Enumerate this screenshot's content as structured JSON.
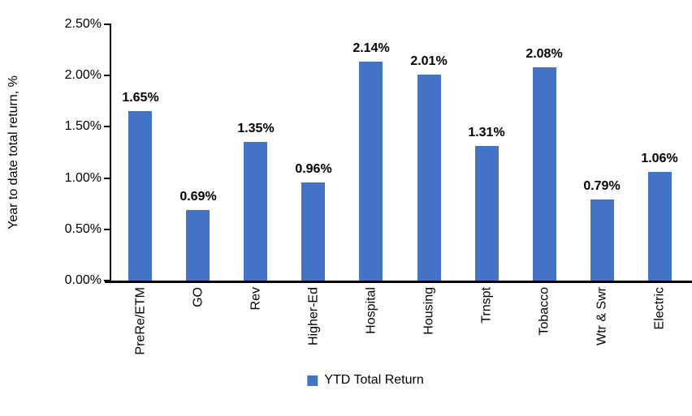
{
  "chart_data": {
    "type": "bar",
    "title": "",
    "categories": [
      "PreRe/ETM",
      "GO",
      "Rev",
      "Higher-Ed",
      "Hospital",
      "Housing",
      "Trnspt",
      "Tobacco",
      "Wtr & Swr",
      "Electric"
    ],
    "values": [
      1.65,
      0.69,
      1.35,
      0.96,
      2.14,
      2.01,
      1.31,
      2.08,
      0.79,
      1.06
    ],
    "value_labels": [
      "1.65%",
      "0.69%",
      "1.35%",
      "0.96%",
      "2.14%",
      "2.01%",
      "1.31%",
      "2.08%",
      "0.79%",
      "1.06%"
    ],
    "series_name": "YTD Total Return",
    "xlabel": "",
    "ylabel": "Year to date total return, %",
    "ylim": [
      0,
      2.5
    ],
    "ytick_step": 0.5,
    "ytick_labels": [
      "0.00%",
      "0.50%",
      "1.00%",
      "1.50%",
      "2.00%",
      "2.50%"
    ],
    "grid": false,
    "legend_position": "bottom",
    "bar_color": "#4472C4",
    "axis_color": "#000000"
  }
}
